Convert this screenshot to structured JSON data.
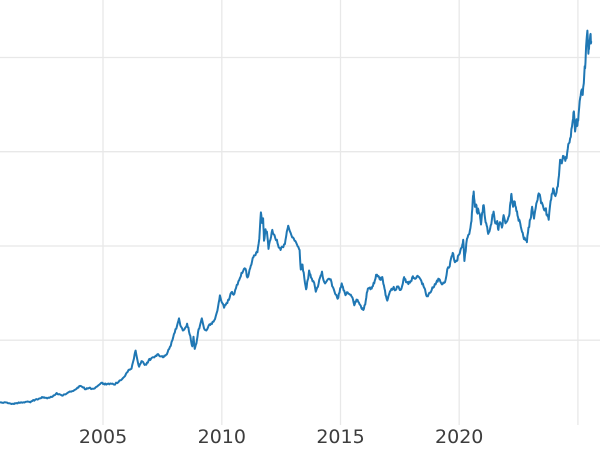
{
  "chart_data": {
    "type": "line",
    "title": "",
    "xlabel": "",
    "ylabel": "",
    "grid": true,
    "legend_position": "none",
    "x_tick_labels": [
      "2005",
      "2010",
      "2015",
      "2020"
    ],
    "x_tick_years": [
      2005,
      2010,
      2015,
      2020
    ],
    "x_gridline_years": [
      2005,
      2010,
      2015,
      2020,
      2025
    ],
    "y_gridline_values": [
      800,
      1600,
      2400,
      3200
    ],
    "y_tick_labels": [],
    "xlim": [
      2000.66,
      2025.93
    ],
    "ylim": [
      80,
      3688
    ],
    "series": [
      {
        "name": "price",
        "color": "#1f77b4",
        "points": [
          [
            2000.67,
            272
          ],
          [
            2000.8,
            268
          ],
          [
            2000.95,
            271
          ],
          [
            2001.1,
            262
          ],
          [
            2001.25,
            258
          ],
          [
            2001.35,
            266
          ],
          [
            2001.5,
            268
          ],
          [
            2001.65,
            273
          ],
          [
            2001.78,
            278
          ],
          [
            2001.9,
            276
          ],
          [
            2002.02,
            284
          ],
          [
            2002.15,
            296
          ],
          [
            2002.3,
            304
          ],
          [
            2002.43,
            318
          ],
          [
            2002.55,
            310
          ],
          [
            2002.7,
            313
          ],
          [
            2002.85,
            318
          ],
          [
            2002.95,
            332
          ],
          [
            2003.05,
            352
          ],
          [
            2003.15,
            342
          ],
          [
            2003.27,
            330
          ],
          [
            2003.38,
            340
          ],
          [
            2003.5,
            352
          ],
          [
            2003.65,
            363
          ],
          [
            2003.8,
            378
          ],
          [
            2003.93,
            398
          ],
          [
            2004.03,
            412
          ],
          [
            2004.15,
            398
          ],
          [
            2004.28,
            384
          ],
          [
            2004.4,
            393
          ],
          [
            2004.55,
            388
          ],
          [
            2004.7,
            402
          ],
          [
            2004.85,
            424
          ],
          [
            2004.97,
            438
          ],
          [
            2005.07,
            424
          ],
          [
            2005.18,
            428
          ],
          [
            2005.3,
            432
          ],
          [
            2005.45,
            424
          ],
          [
            2005.6,
            436
          ],
          [
            2005.75,
            460
          ],
          [
            2005.9,
            490
          ],
          [
            2006.0,
            525
          ],
          [
            2006.1,
            550
          ],
          [
            2006.2,
            558
          ],
          [
            2006.3,
            642
          ],
          [
            2006.37,
            712
          ],
          [
            2006.45,
            628
          ],
          [
            2006.52,
            575
          ],
          [
            2006.62,
            622
          ],
          [
            2006.72,
            600
          ],
          [
            2006.82,
            592
          ],
          [
            2006.92,
            628
          ],
          [
            2007.02,
            642
          ],
          [
            2007.12,
            655
          ],
          [
            2007.22,
            668
          ],
          [
            2007.32,
            682
          ],
          [
            2007.42,
            662
          ],
          [
            2007.52,
            655
          ],
          [
            2007.62,
            668
          ],
          [
            2007.72,
            696
          ],
          [
            2007.82,
            745
          ],
          [
            2007.92,
            800
          ],
          [
            2008.02,
            865
          ],
          [
            2008.12,
            925
          ],
          [
            2008.2,
            985
          ],
          [
            2008.28,
            915
          ],
          [
            2008.36,
            882
          ],
          [
            2008.45,
            902
          ],
          [
            2008.54,
            940
          ],
          [
            2008.62,
            872
          ],
          [
            2008.7,
            802
          ],
          [
            2008.76,
            748
          ],
          [
            2008.81,
            830
          ],
          [
            2008.86,
            726
          ],
          [
            2008.93,
            772
          ],
          [
            2009.0,
            866
          ],
          [
            2009.08,
            922
          ],
          [
            2009.16,
            985
          ],
          [
            2009.25,
            902
          ],
          [
            2009.35,
            882
          ],
          [
            2009.45,
            925
          ],
          [
            2009.55,
            942
          ],
          [
            2009.65,
            956
          ],
          [
            2009.75,
            1005
          ],
          [
            2009.85,
            1092
          ],
          [
            2009.92,
            1180
          ],
          [
            2010.0,
            1122
          ],
          [
            2010.1,
            1076
          ],
          [
            2010.2,
            1115
          ],
          [
            2010.3,
            1142
          ],
          [
            2010.4,
            1205
          ],
          [
            2010.5,
            1186
          ],
          [
            2010.6,
            1242
          ],
          [
            2010.7,
            1300
          ],
          [
            2010.8,
            1342
          ],
          [
            2010.9,
            1386
          ],
          [
            2011.0,
            1406
          ],
          [
            2011.08,
            1332
          ],
          [
            2011.17,
            1396
          ],
          [
            2011.25,
            1442
          ],
          [
            2011.33,
            1502
          ],
          [
            2011.42,
            1522
          ],
          [
            2011.5,
            1546
          ],
          [
            2011.58,
            1662
          ],
          [
            2011.65,
            1885
          ],
          [
            2011.7,
            1795
          ],
          [
            2011.74,
            1835
          ],
          [
            2011.78,
            1645
          ],
          [
            2011.84,
            1742
          ],
          [
            2011.9,
            1722
          ],
          [
            2011.97,
            1575
          ],
          [
            2012.05,
            1652
          ],
          [
            2012.13,
            1736
          ],
          [
            2012.22,
            1692
          ],
          [
            2012.32,
            1652
          ],
          [
            2012.4,
            1588
          ],
          [
            2012.48,
            1566
          ],
          [
            2012.56,
            1592
          ],
          [
            2012.66,
            1616
          ],
          [
            2012.74,
            1722
          ],
          [
            2012.8,
            1772
          ],
          [
            2012.9,
            1712
          ],
          [
            2013.0,
            1672
          ],
          [
            2013.1,
            1642
          ],
          [
            2013.2,
            1596
          ],
          [
            2013.28,
            1566
          ],
          [
            2013.33,
            1400
          ],
          [
            2013.4,
            1442
          ],
          [
            2013.48,
            1322
          ],
          [
            2013.55,
            1232
          ],
          [
            2013.62,
            1312
          ],
          [
            2013.68,
            1392
          ],
          [
            2013.76,
            1332
          ],
          [
            2013.86,
            1302
          ],
          [
            2013.96,
            1212
          ],
          [
            2014.05,
            1252
          ],
          [
            2014.14,
            1332
          ],
          [
            2014.22,
            1382
          ],
          [
            2014.32,
            1292
          ],
          [
            2014.42,
            1302
          ],
          [
            2014.52,
            1322
          ],
          [
            2014.62,
            1292
          ],
          [
            2014.72,
            1232
          ],
          [
            2014.8,
            1186
          ],
          [
            2014.88,
            1152
          ],
          [
            2014.96,
            1202
          ],
          [
            2015.05,
            1282
          ],
          [
            2015.13,
            1222
          ],
          [
            2015.21,
            1182
          ],
          [
            2015.3,
            1206
          ],
          [
            2015.4,
            1186
          ],
          [
            2015.5,
            1162
          ],
          [
            2015.58,
            1096
          ],
          [
            2015.65,
            1126
          ],
          [
            2015.72,
            1142
          ],
          [
            2015.8,
            1106
          ],
          [
            2015.88,
            1072
          ],
          [
            2015.96,
            1056
          ],
          [
            2016.04,
            1102
          ],
          [
            2016.11,
            1202
          ],
          [
            2016.18,
            1242
          ],
          [
            2016.26,
            1232
          ],
          [
            2016.34,
            1256
          ],
          [
            2016.42,
            1282
          ],
          [
            2016.5,
            1356
          ],
          [
            2016.56,
            1342
          ],
          [
            2016.63,
            1332
          ],
          [
            2016.7,
            1312
          ],
          [
            2016.76,
            1336
          ],
          [
            2016.83,
            1266
          ],
          [
            2016.9,
            1182
          ],
          [
            2016.97,
            1136
          ],
          [
            2017.05,
            1192
          ],
          [
            2017.15,
            1236
          ],
          [
            2017.24,
            1252
          ],
          [
            2017.32,
            1226
          ],
          [
            2017.41,
            1256
          ],
          [
            2017.5,
            1226
          ],
          [
            2017.6,
            1262
          ],
          [
            2017.68,
            1336
          ],
          [
            2017.76,
            1292
          ],
          [
            2017.86,
            1276
          ],
          [
            2017.96,
            1302
          ],
          [
            2018.05,
            1342
          ],
          [
            2018.13,
            1322
          ],
          [
            2018.22,
            1342
          ],
          [
            2018.31,
            1336
          ],
          [
            2018.41,
            1302
          ],
          [
            2018.5,
            1256
          ],
          [
            2018.59,
            1202
          ],
          [
            2018.65,
            1178
          ],
          [
            2018.74,
            1202
          ],
          [
            2018.84,
            1226
          ],
          [
            2018.94,
            1252
          ],
          [
            2019.04,
            1292
          ],
          [
            2019.12,
            1322
          ],
          [
            2019.21,
            1296
          ],
          [
            2019.3,
            1276
          ],
          [
            2019.4,
            1292
          ],
          [
            2019.5,
            1402
          ],
          [
            2019.6,
            1426
          ],
          [
            2019.68,
            1512
          ],
          [
            2019.75,
            1532
          ],
          [
            2019.82,
            1462
          ],
          [
            2019.9,
            1472
          ],
          [
            2019.97,
            1522
          ],
          [
            2020.05,
            1562
          ],
          [
            2020.12,
            1592
          ],
          [
            2020.17,
            1652
          ],
          [
            2020.22,
            1472
          ],
          [
            2020.3,
            1622
          ],
          [
            2020.38,
            1692
          ],
          [
            2020.45,
            1732
          ],
          [
            2020.52,
            1812
          ],
          [
            2020.57,
            1982
          ],
          [
            2020.61,
            2062
          ],
          [
            2020.66,
            1932
          ],
          [
            2020.71,
            1952
          ],
          [
            2020.76,
            1882
          ],
          [
            2020.81,
            1906
          ],
          [
            2020.87,
            1866
          ],
          [
            2020.92,
            1782
          ],
          [
            2020.97,
            1882
          ],
          [
            2021.03,
            1946
          ],
          [
            2021.09,
            1832
          ],
          [
            2021.16,
            1772
          ],
          [
            2021.22,
            1702
          ],
          [
            2021.3,
            1746
          ],
          [
            2021.38,
            1832
          ],
          [
            2021.45,
            1892
          ],
          [
            2021.52,
            1792
          ],
          [
            2021.6,
            1812
          ],
          [
            2021.65,
            1736
          ],
          [
            2021.72,
            1802
          ],
          [
            2021.8,
            1756
          ],
          [
            2021.87,
            1862
          ],
          [
            2021.95,
            1792
          ],
          [
            2022.02,
            1812
          ],
          [
            2022.1,
            1856
          ],
          [
            2022.16,
            1972
          ],
          [
            2022.2,
            2042
          ],
          [
            2022.27,
            1932
          ],
          [
            2022.34,
            1976
          ],
          [
            2022.41,
            1896
          ],
          [
            2022.48,
            1842
          ],
          [
            2022.55,
            1812
          ],
          [
            2022.62,
            1742
          ],
          [
            2022.7,
            1682
          ],
          [
            2022.78,
            1652
          ],
          [
            2022.85,
            1632
          ],
          [
            2022.92,
            1756
          ],
          [
            2023.0,
            1826
          ],
          [
            2023.07,
            1932
          ],
          [
            2023.15,
            1832
          ],
          [
            2023.22,
            1922
          ],
          [
            2023.3,
            1992
          ],
          [
            2023.37,
            2042
          ],
          [
            2023.45,
            1962
          ],
          [
            2023.55,
            1922
          ],
          [
            2023.63,
            1916
          ],
          [
            2023.7,
            1866
          ],
          [
            2023.77,
            1822
          ],
          [
            2023.85,
            1982
          ],
          [
            2023.92,
            2046
          ],
          [
            2023.97,
            2082
          ],
          [
            2024.03,
            2032
          ],
          [
            2024.1,
            2052
          ],
          [
            2024.18,
            2162
          ],
          [
            2024.25,
            2332
          ],
          [
            2024.32,
            2302
          ],
          [
            2024.4,
            2362
          ],
          [
            2024.47,
            2322
          ],
          [
            2024.55,
            2392
          ],
          [
            2024.62,
            2472
          ],
          [
            2024.7,
            2526
          ],
          [
            2024.78,
            2662
          ],
          [
            2024.83,
            2742
          ],
          [
            2024.88,
            2572
          ],
          [
            2024.93,
            2662
          ],
          [
            2024.98,
            2622
          ],
          [
            2025.03,
            2722
          ],
          [
            2025.1,
            2862
          ],
          [
            2025.15,
            2922
          ],
          [
            2025.2,
            2882
          ],
          [
            2025.27,
            3062
          ],
          [
            2025.32,
            3162
          ],
          [
            2025.36,
            3342
          ],
          [
            2025.4,
            3428
          ],
          [
            2025.44,
            3232
          ],
          [
            2025.48,
            3342
          ],
          [
            2025.52,
            3392
          ],
          [
            2025.56,
            3332
          ]
        ]
      }
    ]
  },
  "colors": {
    "background": "#ffffff",
    "grid": "#e8e8e8",
    "line": "#1f77b4",
    "tick_label": "#3d3d3d"
  }
}
